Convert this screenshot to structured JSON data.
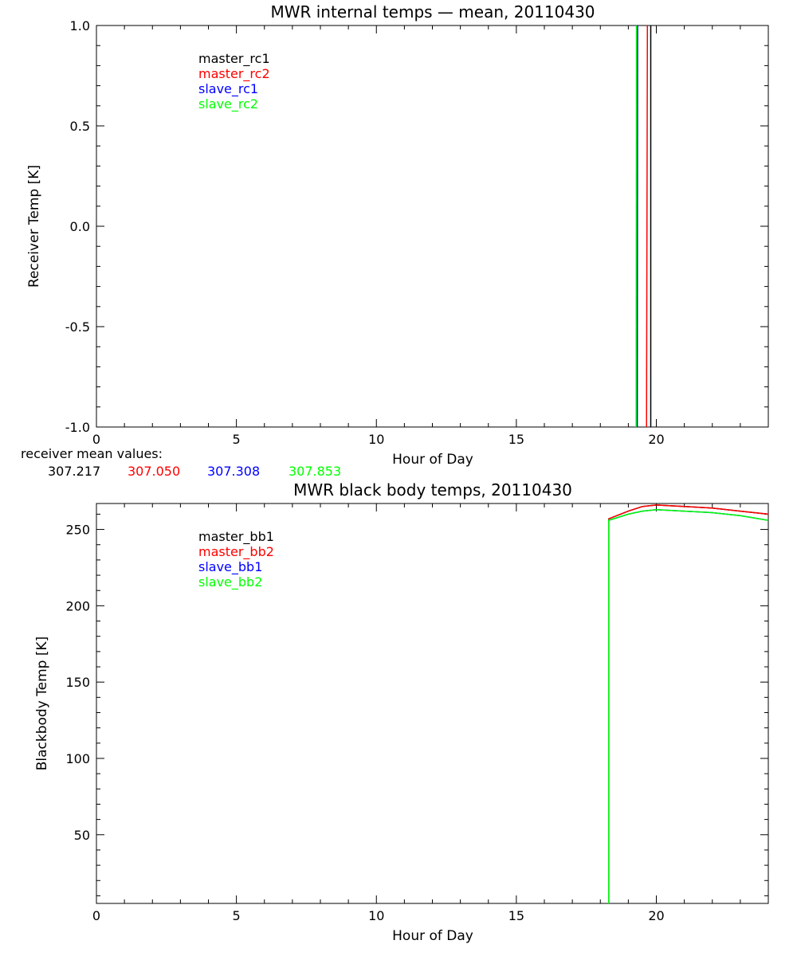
{
  "chart_data": [
    {
      "type": "line",
      "title": "MWR internal temps — mean, 20110430",
      "xlabel": "Hour of Day",
      "ylabel": "Receiver Temp [K]",
      "xlim": [
        0,
        24
      ],
      "ylim": [
        -1.0,
        1.0
      ],
      "xticks": [
        "0",
        "5",
        "10",
        "15",
        "20"
      ],
      "yticks": [
        "-1.0",
        "-0.5",
        "0.0",
        "0.5",
        "1.0"
      ],
      "grid": false,
      "legend_position": "top-left",
      "series": [
        {
          "name": "master_rc1",
          "color": "#000000",
          "x": [
            19.8,
            19.8
          ],
          "y": [
            -1.0,
            1.0
          ]
        },
        {
          "name": "master_rc2",
          "color": "#ff0000",
          "x": [
            19.65,
            19.68
          ],
          "y": [
            -1.0,
            1.0
          ]
        },
        {
          "name": "slave_rc1",
          "color": "#0000ff",
          "x": [
            19.32,
            19.33
          ],
          "y": [
            -1.0,
            1.0
          ]
        },
        {
          "name": "slave_rc2",
          "color": "#00ff00",
          "x": [
            19.28,
            19.29
          ],
          "y": [
            -1.0,
            1.0
          ]
        }
      ],
      "mean_values_label": "receiver mean values:",
      "mean_values": [
        {
          "value": "307.217",
          "color": "#000000"
        },
        {
          "value": "307.050",
          "color": "#ff0000"
        },
        {
          "value": "307.308",
          "color": "#0000ff"
        },
        {
          "value": "307.853",
          "color": "#00ff00"
        }
      ]
    },
    {
      "type": "line",
      "title": "MWR black body temps, 20110430",
      "xlabel": "Hour of Day",
      "ylabel": "Blackbody Temp [K]",
      "xlim": [
        0,
        24
      ],
      "ylim": [
        5,
        267
      ],
      "xticks": [
        "0",
        "5",
        "10",
        "15",
        "20"
      ],
      "yticks": [
        "50",
        "100",
        "150",
        "200",
        "250"
      ],
      "grid": false,
      "legend_position": "top-left",
      "series": [
        {
          "name": "master_bb1",
          "color": "#000000",
          "x": [
            18.3,
            18.3,
            19.0,
            19.5,
            20.0,
            21.0,
            22.0,
            23.0,
            24.0
          ],
          "y": [
            5,
            257,
            262,
            265,
            266,
            265,
            264,
            262,
            260
          ]
        },
        {
          "name": "master_bb2",
          "color": "#ff0000",
          "x": [
            18.3,
            18.3,
            19.0,
            19.5,
            20.0,
            21.0,
            22.0,
            23.0,
            24.0
          ],
          "y": [
            5,
            257,
            262,
            265,
            266,
            265,
            264,
            262,
            260
          ]
        },
        {
          "name": "slave_bb1",
          "color": "#0000ff",
          "x": [
            18.3,
            18.3,
            19.0,
            19.5,
            20.0,
            21.0,
            22.0,
            23.0,
            24.0
          ],
          "y": [
            5,
            256,
            260,
            262,
            263,
            262,
            261,
            259,
            256
          ]
        },
        {
          "name": "slave_bb2",
          "color": "#00ff00",
          "x": [
            18.3,
            18.3,
            19.0,
            19.5,
            20.0,
            21.0,
            22.0,
            23.0,
            24.0
          ],
          "y": [
            5,
            256,
            260,
            262,
            263,
            262,
            261,
            259,
            256
          ]
        }
      ]
    }
  ]
}
